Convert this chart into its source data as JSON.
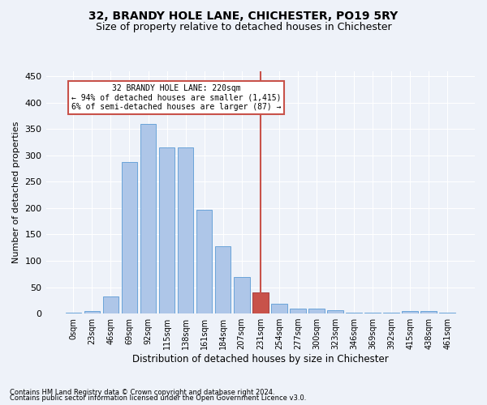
{
  "title": "32, BRANDY HOLE LANE, CHICHESTER, PO19 5RY",
  "subtitle": "Size of property relative to detached houses in Chichester",
  "xlabel": "Distribution of detached houses by size in Chichester",
  "ylabel": "Number of detached properties",
  "bar_labels": [
    "0sqm",
    "23sqm",
    "46sqm",
    "69sqm",
    "92sqm",
    "115sqm",
    "138sqm",
    "161sqm",
    "184sqm",
    "207sqm",
    "231sqm",
    "254sqm",
    "277sqm",
    "300sqm",
    "323sqm",
    "346sqm",
    "369sqm",
    "392sqm",
    "415sqm",
    "438sqm",
    "461sqm"
  ],
  "bar_values": [
    2,
    5,
    33,
    288,
    360,
    315,
    315,
    197,
    127,
    70,
    40,
    19,
    10,
    10,
    6,
    1,
    1,
    1,
    5,
    4,
    1
  ],
  "bar_color": "#aec6e8",
  "bar_edge_color": "#5b9bd5",
  "bar_highlight_color": "#c8524a",
  "bar_highlight_edge_color": "#a03030",
  "vline_x_index": 10,
  "vline_color": "#c8524a",
  "ylim": [
    0,
    460
  ],
  "yticks": [
    0,
    50,
    100,
    150,
    200,
    250,
    300,
    350,
    400,
    450
  ],
  "annotation_text": "32 BRANDY HOLE LANE: 220sqm\n← 94% of detached houses are smaller (1,415)\n6% of semi-detached houses are larger (87) →",
  "annotation_box_color": "#c8524a",
  "footnote1": "Contains HM Land Registry data © Crown copyright and database right 2024.",
  "footnote2": "Contains public sector information licensed under the Open Government Licence v3.0.",
  "bg_color": "#eef2f9",
  "grid_color": "#ffffff",
  "title_fontsize": 10,
  "subtitle_fontsize": 9,
  "tick_fontsize": 7,
  "ylabel_fontsize": 8,
  "xlabel_fontsize": 8.5,
  "footnote_fontsize": 6
}
